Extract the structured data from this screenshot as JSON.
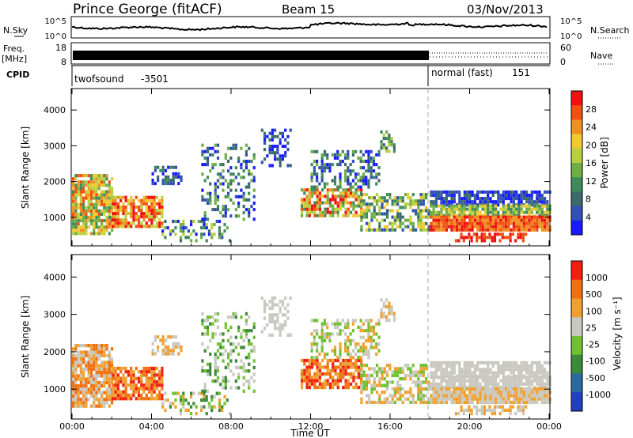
{
  "header": {
    "station": "Prince George (fitACF)",
    "beam": "Beam 15",
    "date": "03/Nov/2013"
  },
  "nsky_panel": {
    "left_label": "N.Sky",
    "left_ticks": [
      "10^5",
      "10^0"
    ],
    "right_ticks": [
      "10^5",
      "10^0"
    ],
    "right_label": "N.Search"
  },
  "freq_panel": {
    "left_label_1": "Freq.",
    "left_label_2": "[MHz]",
    "left_ticks": [
      "18",
      "8"
    ],
    "right_ticks": [
      "60",
      "0"
    ],
    "right_label": "Nave"
  },
  "cpid": {
    "label": "CPID",
    "modes": [
      {
        "name": "twofsound",
        "id": "-3501"
      },
      {
        "name": "normal (fast)",
        "id": "151"
      }
    ]
  },
  "chart_data": [
    {
      "type": "heatmap",
      "title": "",
      "xlabel": "Time UT",
      "ylabel": "Slant Range [km]",
      "x_ticks": [
        "00:00",
        "04:00",
        "08:00",
        "12:00",
        "16:00",
        "20:00",
        "00:00"
      ],
      "y_ticks": [
        "1000",
        "2000",
        "3000",
        "4000"
      ],
      "xlim_hours": [
        0,
        24
      ],
      "ylim_km": [
        200,
        4600
      ],
      "colorbar": {
        "label": "Power [dB]",
        "ticks": [
          "4",
          "8",
          "12",
          "16",
          "20",
          "24",
          "28"
        ],
        "colors": [
          "#1a1aff",
          "#3050b8",
          "#3a6a6a",
          "#3f8a5a",
          "#6fae45",
          "#b8d040",
          "#f0c830",
          "#f09020",
          "#f05010",
          "#f01010"
        ]
      }
    },
    {
      "type": "heatmap",
      "title": "",
      "xlabel": "Time UT",
      "ylabel": "Slant Range [km]",
      "x_ticks": [
        "00:00",
        "04:00",
        "08:00",
        "12:00",
        "16:00",
        "20:00",
        "00:00"
      ],
      "y_ticks": [
        "1000",
        "2000",
        "3000",
        "4000"
      ],
      "xlim_hours": [
        0,
        24
      ],
      "ylim_km": [
        200,
        4600
      ],
      "colorbar": {
        "label": "Velocity [m s⁻¹]",
        "ticks": [
          "1000",
          "500",
          "100",
          "25",
          "-25",
          "-100",
          "-500",
          "-1000"
        ],
        "colors": [
          "#2040c0",
          "#2a6aa0",
          "#3a8a3a",
          "#70c030",
          "#c8c8c0",
          "#f0a030",
          "#f07010",
          "#f02010"
        ]
      }
    }
  ],
  "x_axis_label": "Time UT",
  "x_tick_labels": [
    "00:00",
    "04:00",
    "08:00",
    "12:00",
    "16:00",
    "20:00",
    "00:00"
  ]
}
